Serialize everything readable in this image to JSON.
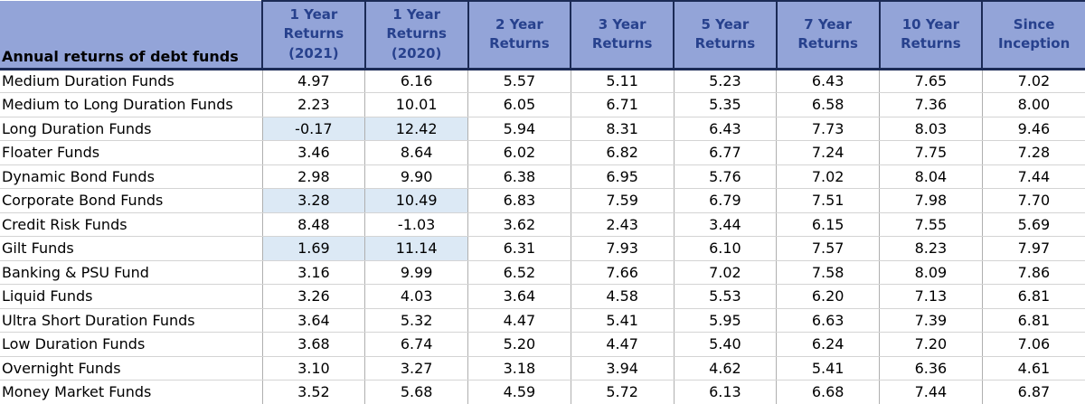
{
  "colors": {
    "header_bg": "#93A4D8",
    "header_text": "#27418D",
    "header_border": "#1B2A55",
    "highlight_bg": "#DCE9F5",
    "grid_vertical": "#AFAFAF",
    "grid_horizontal": "#D4D4D4"
  },
  "chart_data": {
    "type": "table",
    "title": "Annual returns of debt funds",
    "corner_header": "Annual returns of debt funds",
    "columns": [
      "1 Year\nReturns\n(2021)",
      "1 Year\nReturns\n(2020)",
      "2 Year\nReturns",
      "3 Year\nReturns",
      "5 Year\nReturns",
      "7 Year\nReturns",
      "10 Year\nReturns",
      "Since\nInception"
    ],
    "highlight_note": "rows with highlight_year1 have light-blue shading on the two 1-Year columns",
    "rows": [
      {
        "name": "Medium Duration Funds",
        "values": [
          "4.97",
          "6.16",
          "5.57",
          "5.11",
          "5.23",
          "6.43",
          "7.65",
          "7.02"
        ],
        "highlight_year1": false
      },
      {
        "name": "Medium to Long Duration Funds",
        "values": [
          "2.23",
          "10.01",
          "6.05",
          "6.71",
          "5.35",
          "6.58",
          "7.36",
          "8.00"
        ],
        "highlight_year1": false
      },
      {
        "name": "Long Duration Funds",
        "values": [
          "-0.17",
          "12.42",
          "5.94",
          "8.31",
          "6.43",
          "7.73",
          "8.03",
          "9.46"
        ],
        "highlight_year1": true
      },
      {
        "name": "Floater Funds",
        "values": [
          "3.46",
          "8.64",
          "6.02",
          "6.82",
          "6.77",
          "7.24",
          "7.75",
          "7.28"
        ],
        "highlight_year1": false
      },
      {
        "name": "Dynamic Bond Funds",
        "values": [
          "2.98",
          "9.90",
          "6.38",
          "6.95",
          "5.76",
          "7.02",
          "8.04",
          "7.44"
        ],
        "highlight_year1": false
      },
      {
        "name": "Corporate Bond Funds",
        "values": [
          "3.28",
          "10.49",
          "6.83",
          "7.59",
          "6.79",
          "7.51",
          "7.98",
          "7.70"
        ],
        "highlight_year1": true
      },
      {
        "name": "Credit Risk Funds",
        "values": [
          "8.48",
          "-1.03",
          "3.62",
          "2.43",
          "3.44",
          "6.15",
          "7.55",
          "5.69"
        ],
        "highlight_year1": false
      },
      {
        "name": "Gilt Funds",
        "values": [
          "1.69",
          "11.14",
          "6.31",
          "7.93",
          "6.10",
          "7.57",
          "8.23",
          "7.97"
        ],
        "highlight_year1": true
      },
      {
        "name": "Banking & PSU Fund",
        "values": [
          "3.16",
          "9.99",
          "6.52",
          "7.66",
          "7.02",
          "7.58",
          "8.09",
          "7.86"
        ],
        "highlight_year1": false
      },
      {
        "name": "Liquid Funds",
        "values": [
          "3.26",
          "4.03",
          "3.64",
          "4.58",
          "5.53",
          "6.20",
          "7.13",
          "6.81"
        ],
        "highlight_year1": false
      },
      {
        "name": "Ultra Short Duration Funds",
        "values": [
          "3.64",
          "5.32",
          "4.47",
          "5.41",
          "5.95",
          "6.63",
          "7.39",
          "6.81"
        ],
        "highlight_year1": false
      },
      {
        "name": "Low Duration Funds",
        "values": [
          "3.68",
          "6.74",
          "5.20",
          "4.47",
          "5.40",
          "6.24",
          "7.20",
          "7.06"
        ],
        "highlight_year1": false
      },
      {
        "name": "Overnight Funds",
        "values": [
          "3.10",
          "3.27",
          "3.18",
          "3.94",
          "4.62",
          "5.41",
          "6.36",
          "4.61"
        ],
        "highlight_year1": false
      },
      {
        "name": "Money Market Funds",
        "values": [
          "3.52",
          "5.68",
          "4.59",
          "5.72",
          "6.13",
          "6.68",
          "7.44",
          "6.87"
        ],
        "highlight_year1": false
      }
    ]
  }
}
